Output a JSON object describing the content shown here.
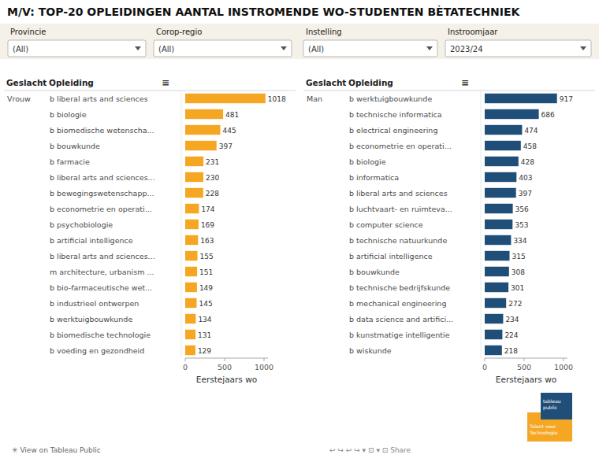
{
  "chart_data": [
    {
      "type": "bar",
      "orientation": "horizontal",
      "title": "M/V: TOP-20 OPLEIDINGEN AANTAL INSTROMENDE WO-STUDENTEN BÈTATECHNIEK",
      "xlabel": "Eerstejaars wo",
      "color": "#F5A623",
      "categories": [
        "b liberal arts and sciences",
        "b biologie",
        "b biomedische wetenscha...",
        "b bouwkunde",
        "b farmacie",
        "b liberal arts and sciences...",
        "b bewegingswetenschapp...",
        "b econometrie en operati...",
        "b psychobiologie",
        "b artificial intelligence",
        "b liberal arts and sciences...",
        "m architecture, urbanism ...",
        "b bio-farmaceutische wet...",
        "b industrieel ontwerpen",
        "b werktuigbouwkunde",
        "b biomedische technologie",
        "b voeding en gezondheid"
      ],
      "values": [
        1018,
        481,
        445,
        397,
        231,
        230,
        228,
        174,
        169,
        163,
        155,
        151,
        149,
        145,
        134,
        131,
        129
      ],
      "xlim": [
        0,
        1050
      ],
      "xticks": [
        0,
        500,
        1000
      ],
      "data_labels": true,
      "annotations": [
        "Geslacht",
        "Opleiding",
        "≡",
        "Vrouw",
        "Provincie",
        "(All)",
        "Corop-regio",
        "(All)",
        "Instelling",
        "(All)",
        "Instroomjaar",
        "2023/24",
        "✳ View on Tableau Public",
        "↩  ↪  ↩  ↪  ▾   ⊡  ▾   ⊡   Share",
        "tableau",
        "public",
        "Talent voor",
        "Technologie"
      ]
    },
    {
      "type": "bar",
      "orientation": "horizontal",
      "xlabel": "Eerstejaars wo",
      "color": "#1F4E79",
      "categories": [
        "b werktuigbouwkunde",
        "b technische informatica",
        "b electrical engineering",
        "b econometrie en operati...",
        "b biologie",
        "b informatica",
        "b liberal arts and sciences",
        "b luchtvaart- en ruimteva...",
        "b computer science",
        "b technische natuurkunde",
        "b artificial intelligence",
        "b bouwkunde",
        "b technische bedrijfskunde",
        "b mechanical engineering",
        "b data science and artifici...",
        "b kunstmatige intelligentie",
        "b wiskunde"
      ],
      "values": [
        917,
        686,
        474,
        458,
        428,
        403,
        397,
        356,
        353,
        334,
        315,
        308,
        301,
        272,
        234,
        224,
        218
      ],
      "xlim": [
        0,
        1050
      ],
      "xticks": [
        0,
        500,
        1000
      ],
      "data_labels": true,
      "annotations": [
        "Geslacht",
        "Opleiding",
        "≡",
        "Man"
      ]
    }
  ]
}
